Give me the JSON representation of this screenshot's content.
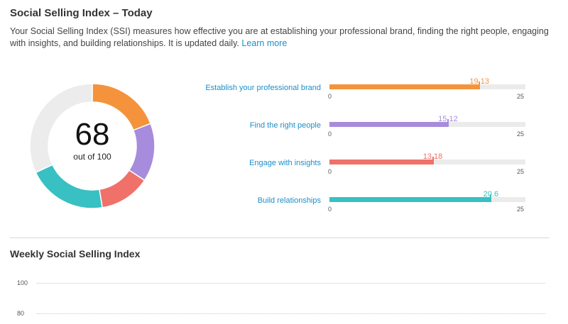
{
  "header": {
    "title": "Social Selling Index – Today",
    "description": "Your Social Selling Index (SSI) measures how effective you are at establishing your professional brand, finding the right people, engaging with insights, and building relationships. It is updated daily.",
    "learn_more": "Learn more"
  },
  "ssi": {
    "score": "68",
    "score_sub": "out of 100",
    "track_color": "#ececec"
  },
  "components": [
    {
      "label": "Establish your professional brand",
      "value": 19.13,
      "value_text": "19.13",
      "color": "#f4933b"
    },
    {
      "label": "Find the right people",
      "value": 15.12,
      "value_text": "15.12",
      "color": "#a78bdc"
    },
    {
      "label": "Engage with insights",
      "value": 13.18,
      "value_text": "13.18",
      "color": "#f0706a"
    },
    {
      "label": "Build relationships",
      "value": 20.6,
      "value_text": "20.6",
      "color": "#38c0c2"
    }
  ],
  "scale": {
    "min": "0",
    "max": "25",
    "max_value": 25
  },
  "weekly": {
    "title": "Weekly Social Selling Index",
    "gridlines": [
      "100",
      "80"
    ]
  }
}
